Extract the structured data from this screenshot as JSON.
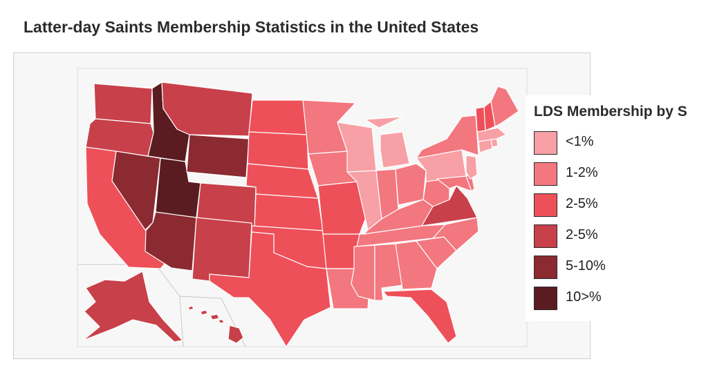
{
  "title": "Latter-day Saints Membership Statistics in the United States",
  "legend": {
    "title": "LDS Membership by S",
    "items": [
      {
        "label": "<1%",
        "color": "#f7a0a5"
      },
      {
        "label": "1-2%",
        "color": "#f3777e"
      },
      {
        "label": "2-5%",
        "color": "#ee5059"
      },
      {
        "label": "2-5%",
        "color": "#c8404a"
      },
      {
        "label": "5-10%",
        "color": "#8b2a31"
      },
      {
        "label": "10>%",
        "color": "#5a1c20"
      }
    ]
  },
  "states": [
    {
      "id": "WA",
      "category": 3
    },
    {
      "id": "OR",
      "category": 3
    },
    {
      "id": "CA",
      "category": 2
    },
    {
      "id": "ID",
      "category": 5
    },
    {
      "id": "NV",
      "category": 4
    },
    {
      "id": "UT",
      "category": 5
    },
    {
      "id": "AZ",
      "category": 4
    },
    {
      "id": "MT",
      "category": 3
    },
    {
      "id": "WY",
      "category": 4
    },
    {
      "id": "CO",
      "category": 3
    },
    {
      "id": "NM",
      "category": 3
    },
    {
      "id": "ND",
      "category": 2
    },
    {
      "id": "SD",
      "category": 2
    },
    {
      "id": "NE",
      "category": 2
    },
    {
      "id": "KS",
      "category": 2
    },
    {
      "id": "OK",
      "category": 2
    },
    {
      "id": "TX",
      "category": 2
    },
    {
      "id": "MN",
      "category": 1
    },
    {
      "id": "IA",
      "category": 1
    },
    {
      "id": "MO",
      "category": 2
    },
    {
      "id": "AR",
      "category": 2
    },
    {
      "id": "LA",
      "category": 1
    },
    {
      "id": "WI",
      "category": 0
    },
    {
      "id": "IL",
      "category": 0
    },
    {
      "id": "MI",
      "category": 0
    },
    {
      "id": "IN",
      "category": 1
    },
    {
      "id": "OH",
      "category": 1
    },
    {
      "id": "KY",
      "category": 1
    },
    {
      "id": "TN",
      "category": 1
    },
    {
      "id": "MS",
      "category": 1
    },
    {
      "id": "AL",
      "category": 1
    },
    {
      "id": "GA",
      "category": 1
    },
    {
      "id": "FL",
      "category": 2
    },
    {
      "id": "SC",
      "category": 1
    },
    {
      "id": "NC",
      "category": 1
    },
    {
      "id": "VA",
      "category": 3
    },
    {
      "id": "WV",
      "category": 1
    },
    {
      "id": "PA",
      "category": 0
    },
    {
      "id": "NY",
      "category": 1
    },
    {
      "id": "MD",
      "category": 1
    },
    {
      "id": "DE",
      "category": 1
    },
    {
      "id": "NJ",
      "category": 0
    },
    {
      "id": "CT",
      "category": 0
    },
    {
      "id": "RI",
      "category": 0
    },
    {
      "id": "MA",
      "category": 0
    },
    {
      "id": "VT",
      "category": 2
    },
    {
      "id": "NH",
      "category": 2
    },
    {
      "id": "ME",
      "category": 1
    },
    {
      "id": "AK",
      "category": 3
    },
    {
      "id": "HI",
      "category": 3
    }
  ]
}
